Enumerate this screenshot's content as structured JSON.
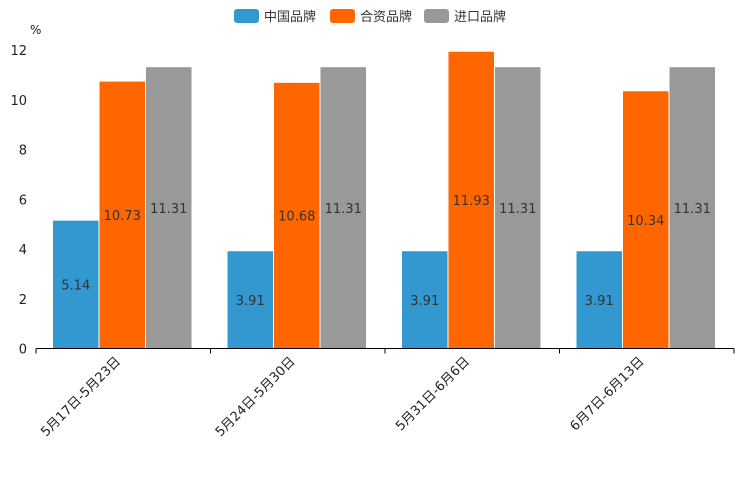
{
  "chart_data": {
    "type": "bar",
    "unit": "%",
    "categories": [
      "5月17日-5月23日",
      "5月24日-5月30日",
      "5月31日-6月6日",
      "6月7日-6月13日"
    ],
    "series": [
      {
        "name": "中国品牌",
        "color": "#3398d0",
        "values": [
          5.14,
          3.91,
          3.91,
          3.91
        ]
      },
      {
        "name": "合资品牌",
        "color": "#ff6600",
        "values": [
          10.73,
          10.68,
          11.93,
          10.34
        ]
      },
      {
        "name": "进口品牌",
        "color": "#999999",
        "values": [
          11.31,
          11.31,
          11.31,
          11.31
        ]
      }
    ],
    "ylim": [
      0,
      12
    ],
    "yticks": [
      0,
      2,
      4,
      6,
      8,
      10,
      12
    ],
    "legend_position": "top-center",
    "grid": false
  }
}
